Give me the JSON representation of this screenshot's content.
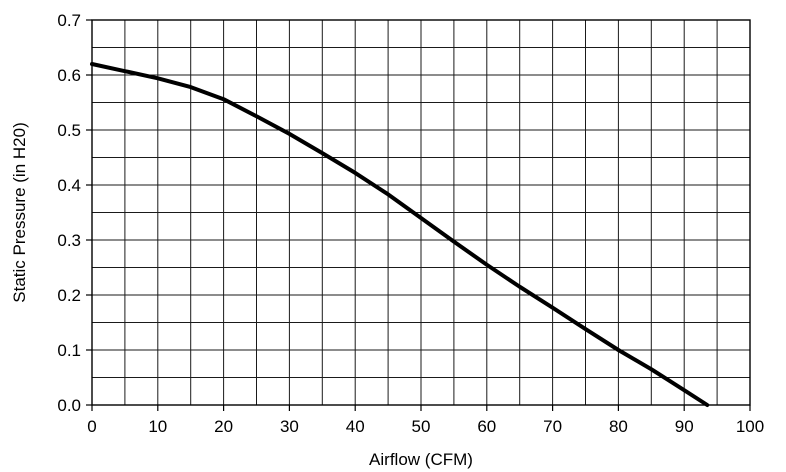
{
  "chart_data": {
    "type": "line",
    "xlabel": "Airflow (CFM)",
    "ylabel": "Static Pressure (in H20)",
    "xlim": [
      0,
      100
    ],
    "ylim": [
      0,
      0.7
    ],
    "x_ticks": [
      0,
      10,
      20,
      30,
      40,
      50,
      60,
      70,
      80,
      90,
      100
    ],
    "x_tick_labels": [
      "0",
      "10",
      "20",
      "30",
      "40",
      "50",
      "60",
      "70",
      "80",
      "90",
      "100"
    ],
    "y_ticks": [
      0,
      0.1,
      0.2,
      0.3,
      0.4,
      0.5,
      0.6,
      0.7
    ],
    "y_tick_labels": [
      "0.0",
      "0.1",
      "0.2",
      "0.3",
      "0.4",
      "0.5",
      "0.6",
      "0.7"
    ],
    "grid": true,
    "grid_x_step": 5,
    "grid_y_step": 0.05,
    "line_color": "#000000",
    "series": [
      {
        "x": [
          0,
          5,
          10,
          15,
          20,
          25,
          30,
          35,
          40,
          45,
          50,
          55,
          60,
          65,
          70,
          75,
          80,
          85,
          90,
          93.5
        ],
        "y": [
          0.62,
          0.607,
          0.594,
          0.578,
          0.556,
          0.525,
          0.493,
          0.458,
          0.422,
          0.383,
          0.34,
          0.297,
          0.255,
          0.215,
          0.177,
          0.138,
          0.1,
          0.065,
          0.027,
          0.0
        ]
      }
    ]
  }
}
